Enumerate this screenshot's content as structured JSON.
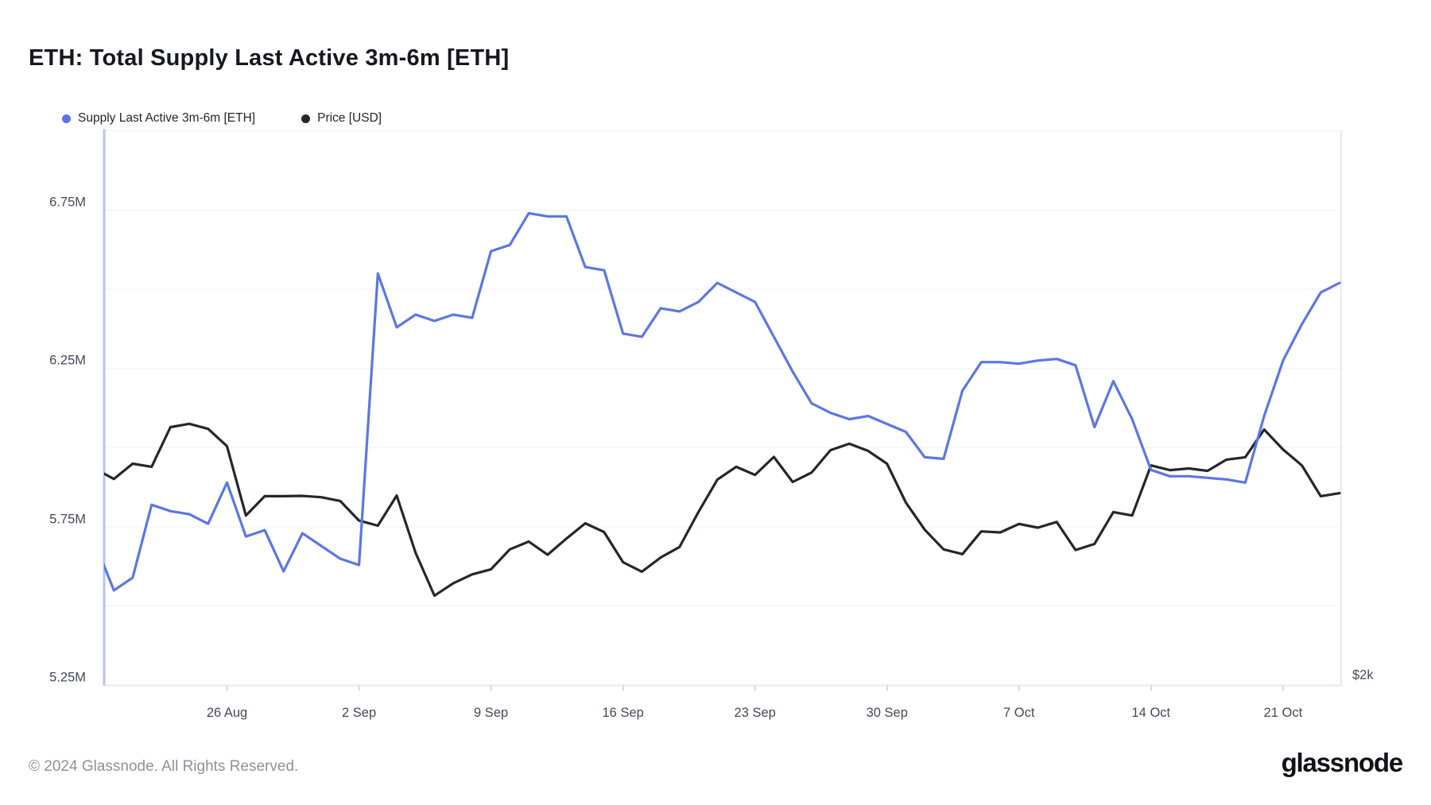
{
  "header": {
    "title": "ETH: Total Supply Last Active 3m-6m [ETH]"
  },
  "footer": {
    "copyright": "© 2024 Glassnode. All Rights Reserved.",
    "logo_text": "glassnode"
  },
  "colors": {
    "supply_line": "#5B76E7",
    "price_line": "#23272E",
    "gridline": "#F0F1F4",
    "axis_border": "#E2E4E9",
    "left_axis_line": "#B9C3F2",
    "tick_mark": "#CCD0D6",
    "axis_text": "#434A59",
    "title_text": "#15181E",
    "footer_text": "#8D929C"
  },
  "chart_data": {
    "type": "line",
    "title": "ETH: Total Supply Last Active 3m-6m [ETH]",
    "grid": "horizontal",
    "legend_position": "top-left",
    "x": [
      "Aug 19",
      "Aug 20",
      "Aug 21",
      "Aug 22",
      "Aug 23",
      "Aug 24",
      "Aug 25",
      "Aug 26",
      "Aug 27",
      "Aug 28",
      "Aug 29",
      "Aug 30",
      "Aug 31",
      "Sep 1",
      "Sep 2",
      "Sep 3",
      "Sep 4",
      "Sep 5",
      "Sep 6",
      "Sep 7",
      "Sep 8",
      "Sep 9",
      "Sep 10",
      "Sep 11",
      "Sep 12",
      "Sep 13",
      "Sep 14",
      "Sep 15",
      "Sep 16",
      "Sep 17",
      "Sep 18",
      "Sep 19",
      "Sep 20",
      "Sep 21",
      "Sep 22",
      "Sep 23",
      "Sep 24",
      "Sep 25",
      "Sep 26",
      "Sep 27",
      "Sep 28",
      "Sep 29",
      "Sep 30",
      "Oct 1",
      "Oct 2",
      "Oct 3",
      "Oct 4",
      "Oct 5",
      "Oct 6",
      "Oct 7",
      "Oct 8",
      "Oct 9",
      "Oct 10",
      "Oct 11",
      "Oct 12",
      "Oct 13",
      "Oct 14",
      "Oct 15",
      "Oct 16",
      "Oct 17",
      "Oct 18",
      "Oct 19",
      "Oct 20",
      "Oct 21",
      "Oct 22",
      "Oct 23",
      "Oct 24"
    ],
    "series": [
      {
        "name": "Supply Last Active 3m-6m [ETH]",
        "color": "#5B76E7",
        "axis": "left",
        "unit": "M ETH",
        "values": [
          5.7,
          5.55,
          5.59,
          5.82,
          5.8,
          5.79,
          5.76,
          5.89,
          5.72,
          5.74,
          5.61,
          5.73,
          5.69,
          5.65,
          5.63,
          6.55,
          6.38,
          6.42,
          6.4,
          6.42,
          6.41,
          6.62,
          6.64,
          6.74,
          6.73,
          6.73,
          6.57,
          6.56,
          6.36,
          6.35,
          6.44,
          6.43,
          6.46,
          6.52,
          6.49,
          6.46,
          6.35,
          6.24,
          6.14,
          6.11,
          6.09,
          6.1,
          6.075,
          6.05,
          5.97,
          5.965,
          6.18,
          6.27,
          6.27,
          6.265,
          6.275,
          6.28,
          6.26,
          6.065,
          6.21,
          6.09,
          5.93,
          5.91,
          5.91,
          5.905,
          5.9,
          5.89,
          6.1,
          6.275,
          6.39,
          6.49,
          6.52
        ]
      },
      {
        "name": "Price [USD]",
        "color": "#23272E",
        "axis": "right",
        "unit": "USD",
        "values": [
          2640,
          2610,
          2655,
          2646,
          2763,
          2773,
          2758,
          2707,
          2502,
          2559,
          2559,
          2560,
          2556,
          2545,
          2487,
          2472,
          2561,
          2392,
          2265,
          2302,
          2328,
          2343,
          2402,
          2425,
          2386,
          2434,
          2479,
          2453,
          2364,
          2336,
          2378,
          2409,
          2512,
          2608,
          2646,
          2622,
          2675,
          2601,
          2629,
          2695,
          2714,
          2693,
          2655,
          2540,
          2460,
          2402,
          2388,
          2455,
          2452,
          2477,
          2466,
          2483,
          2400,
          2418,
          2512,
          2502,
          2650,
          2636,
          2641,
          2634,
          2667,
          2674,
          2756,
          2697,
          2650,
          2559,
          2568
        ]
      }
    ],
    "y_axis_left": {
      "unit": "M",
      "range_min": 5.25,
      "range_max": 7.0,
      "labels": [
        "6.75M",
        "6.25M",
        "5.75M",
        "5.25M"
      ],
      "label_values": [
        6.75,
        6.25,
        5.75,
        5.25
      ],
      "minor_gridline_values": [
        7.0,
        6.5,
        6.0,
        5.5
      ]
    },
    "y_axis_right": {
      "label": "$2k",
      "value": 2000
    },
    "x_axis": {
      "tick_labels": [
        "26 Aug",
        "2 Sep",
        "9 Sep",
        "16 Sep",
        "23 Sep",
        "30 Sep",
        "7 Oct",
        "14 Oct",
        "21 Oct"
      ],
      "tick_indices": [
        7,
        14,
        21,
        28,
        35,
        42,
        49,
        56,
        63
      ]
    }
  }
}
